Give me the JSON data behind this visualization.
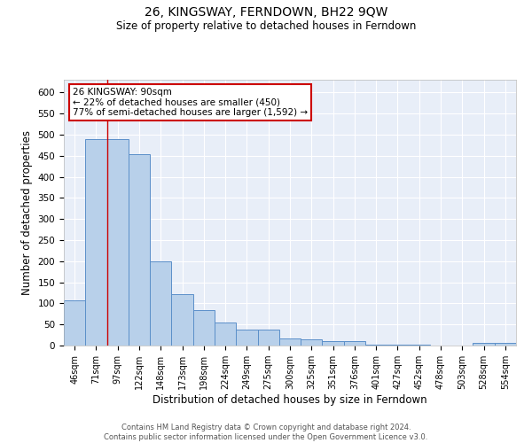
{
  "title": "26, KINGSWAY, FERNDOWN, BH22 9QW",
  "subtitle": "Size of property relative to detached houses in Ferndown",
  "xlabel": "Distribution of detached houses by size in Ferndown",
  "ylabel": "Number of detached properties",
  "categories": [
    "46sqm",
    "71sqm",
    "97sqm",
    "122sqm",
    "148sqm",
    "173sqm",
    "198sqm",
    "224sqm",
    "249sqm",
    "275sqm",
    "300sqm",
    "325sqm",
    "351sqm",
    "376sqm",
    "401sqm",
    "427sqm",
    "452sqm",
    "478sqm",
    "503sqm",
    "528sqm",
    "554sqm"
  ],
  "values": [
    107,
    490,
    490,
    453,
    200,
    122,
    84,
    55,
    38,
    38,
    16,
    14,
    11,
    11,
    3,
    3,
    3,
    0,
    0,
    6,
    6
  ],
  "bar_color": "#b8d0ea",
  "bar_edge_color": "#5b8fc9",
  "background_color": "#e8eef8",
  "grid_color": "#ffffff",
  "red_line_x": 1.5,
  "annotation_line1": "26 KINGSWAY: 90sqm",
  "annotation_line2": "← 22% of detached houses are smaller (450)",
  "annotation_line3": "77% of semi-detached houses are larger (1,592) →",
  "annotation_box_color": "#ffffff",
  "annotation_box_edge_color": "#cc0000",
  "footer_text": "Contains HM Land Registry data © Crown copyright and database right 2024.\nContains public sector information licensed under the Open Government Licence v3.0.",
  "ylim": [
    0,
    630
  ],
  "yticks": [
    0,
    50,
    100,
    150,
    200,
    250,
    300,
    350,
    400,
    450,
    500,
    550,
    600
  ]
}
